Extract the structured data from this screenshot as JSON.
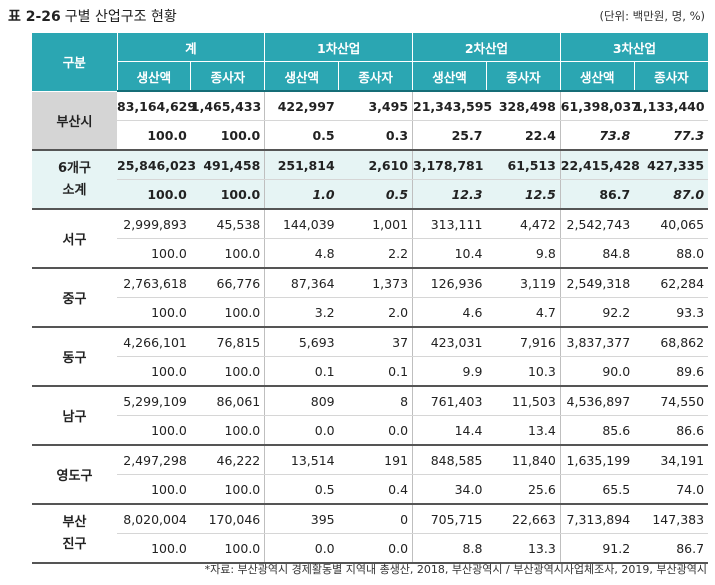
{
  "title": {
    "label": "표 2-26",
    "text": "구별 산업구조 현황"
  },
  "unit": "(단위: 백만원, 명, %)",
  "header": {
    "corner": "구분",
    "groups": [
      "계",
      "1차산업",
      "2차산업",
      "3차산업"
    ],
    "subs": [
      "생산액",
      "종사자",
      "생산액",
      "종사자",
      "생산액",
      "종사자",
      "생산액",
      "종사자"
    ]
  },
  "rows": [
    {
      "name": "부산시",
      "v": [
        "83,164,629",
        "1,465,433",
        "422,997",
        "3,495",
        "21,343,595",
        "328,498",
        "61,398,037",
        "1,133,440"
      ],
      "p": [
        "100.0",
        "100.0",
        "0.5",
        "0.3",
        "25.7",
        "22.4",
        "73.8",
        "77.3"
      ]
    },
    {
      "name_l1": "6개구",
      "name_l2": "소계",
      "v": [
        "25,846,023",
        "491,458",
        "251,814",
        "2,610",
        "3,178,781",
        "61,513",
        "22,415,428",
        "427,335"
      ],
      "p": [
        "100.0",
        "100.0",
        "1.0",
        "0.5",
        "12.3",
        "12.5",
        "86.7",
        "87.0"
      ]
    },
    {
      "name": "서구",
      "v": [
        "2,999,893",
        "45,538",
        "144,039",
        "1,001",
        "313,111",
        "4,472",
        "2,542,743",
        "40,065"
      ],
      "p": [
        "100.0",
        "100.0",
        "4.8",
        "2.2",
        "10.4",
        "9.8",
        "84.8",
        "88.0"
      ]
    },
    {
      "name": "중구",
      "v": [
        "2,763,618",
        "66,776",
        "87,364",
        "1,373",
        "126,936",
        "3,119",
        "2,549,318",
        "62,284"
      ],
      "p": [
        "100.0",
        "100.0",
        "3.2",
        "2.0",
        "4.6",
        "4.7",
        "92.2",
        "93.3"
      ]
    },
    {
      "name": "동구",
      "v": [
        "4,266,101",
        "76,815",
        "5,693",
        "37",
        "423,031",
        "7,916",
        "3,837,377",
        "68,862"
      ],
      "p": [
        "100.0",
        "100.0",
        "0.1",
        "0.1",
        "9.9",
        "10.3",
        "90.0",
        "89.6"
      ]
    },
    {
      "name": "남구",
      "v": [
        "5,299,109",
        "86,061",
        "809",
        "8",
        "761,403",
        "11,503",
        "4,536,897",
        "74,550"
      ],
      "p": [
        "100.0",
        "100.0",
        "0.0",
        "0.0",
        "14.4",
        "13.4",
        "85.6",
        "86.6"
      ]
    },
    {
      "name": "영도구",
      "v": [
        "2,497,298",
        "46,222",
        "13,514",
        "191",
        "848,585",
        "11,840",
        "1,635,199",
        "34,191"
      ],
      "p": [
        "100.0",
        "100.0",
        "0.5",
        "0.4",
        "34.0",
        "25.6",
        "65.5",
        "74.0"
      ]
    },
    {
      "name_l1": "부산",
      "name_l2": "진구",
      "v": [
        "8,020,004",
        "170,046",
        "395",
        "0",
        "705,715",
        "22,663",
        "7,313,894",
        "147,383"
      ],
      "p": [
        "100.0",
        "100.0",
        "0.0",
        "0.0",
        "8.8",
        "13.3",
        "91.2",
        "86.7"
      ]
    }
  ],
  "source": "*자료: 부산광역시 경제활동별 지역내 총생산, 2018, 부산광역시 / 부산광역시사업체조사, 2019, 부산광역시"
}
